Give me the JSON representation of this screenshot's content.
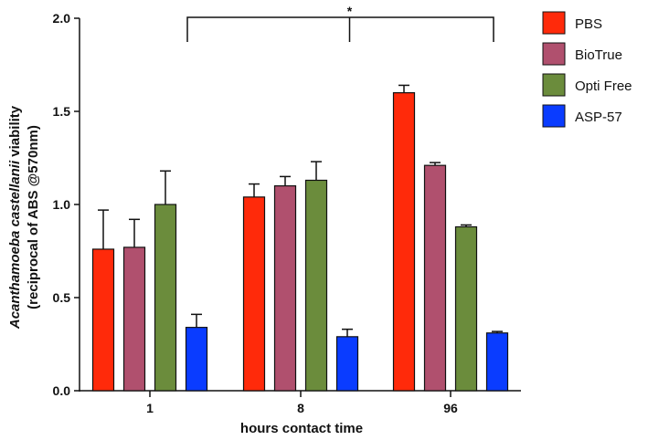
{
  "chart_data": {
    "type": "bar",
    "categories": [
      "1",
      "8",
      "96"
    ],
    "series": [
      {
        "name": "PBS",
        "color": "#ff2a0a",
        "values": [
          0.76,
          1.04,
          1.6
        ],
        "errors": [
          0.21,
          0.07,
          0.04
        ]
      },
      {
        "name": "BioTrue",
        "color": "#b0506e",
        "values": [
          0.77,
          1.1,
          1.21
        ],
        "errors": [
          0.15,
          0.05,
          0.015
        ]
      },
      {
        "name": "Opti Free",
        "color": "#6b8c3c",
        "values": [
          1.0,
          1.13,
          0.88
        ],
        "errors": [
          0.18,
          0.1,
          0.01
        ]
      },
      {
        "name": "ASP-57",
        "color": "#0a3cff",
        "values": [
          0.34,
          0.29,
          0.31
        ],
        "errors": [
          0.07,
          0.04,
          0.008
        ]
      }
    ],
    "xlabel": "hours contact time",
    "ylabel_line1_italic": "Acanthamoeba castellanii",
    "ylabel_line1_rest": " viability",
    "ylabel_line2": "(reciprocal of ABS @570nm)",
    "ylim": [
      0,
      2.0
    ],
    "yticks": [
      0.0,
      0.5,
      1.0,
      1.5,
      2.0
    ],
    "ytick_labels": [
      "0.0",
      "0.5",
      "1.0",
      "1.5",
      "2.0"
    ],
    "significance": {
      "label": "*",
      "from_category": 0,
      "to_category": 2
    }
  }
}
